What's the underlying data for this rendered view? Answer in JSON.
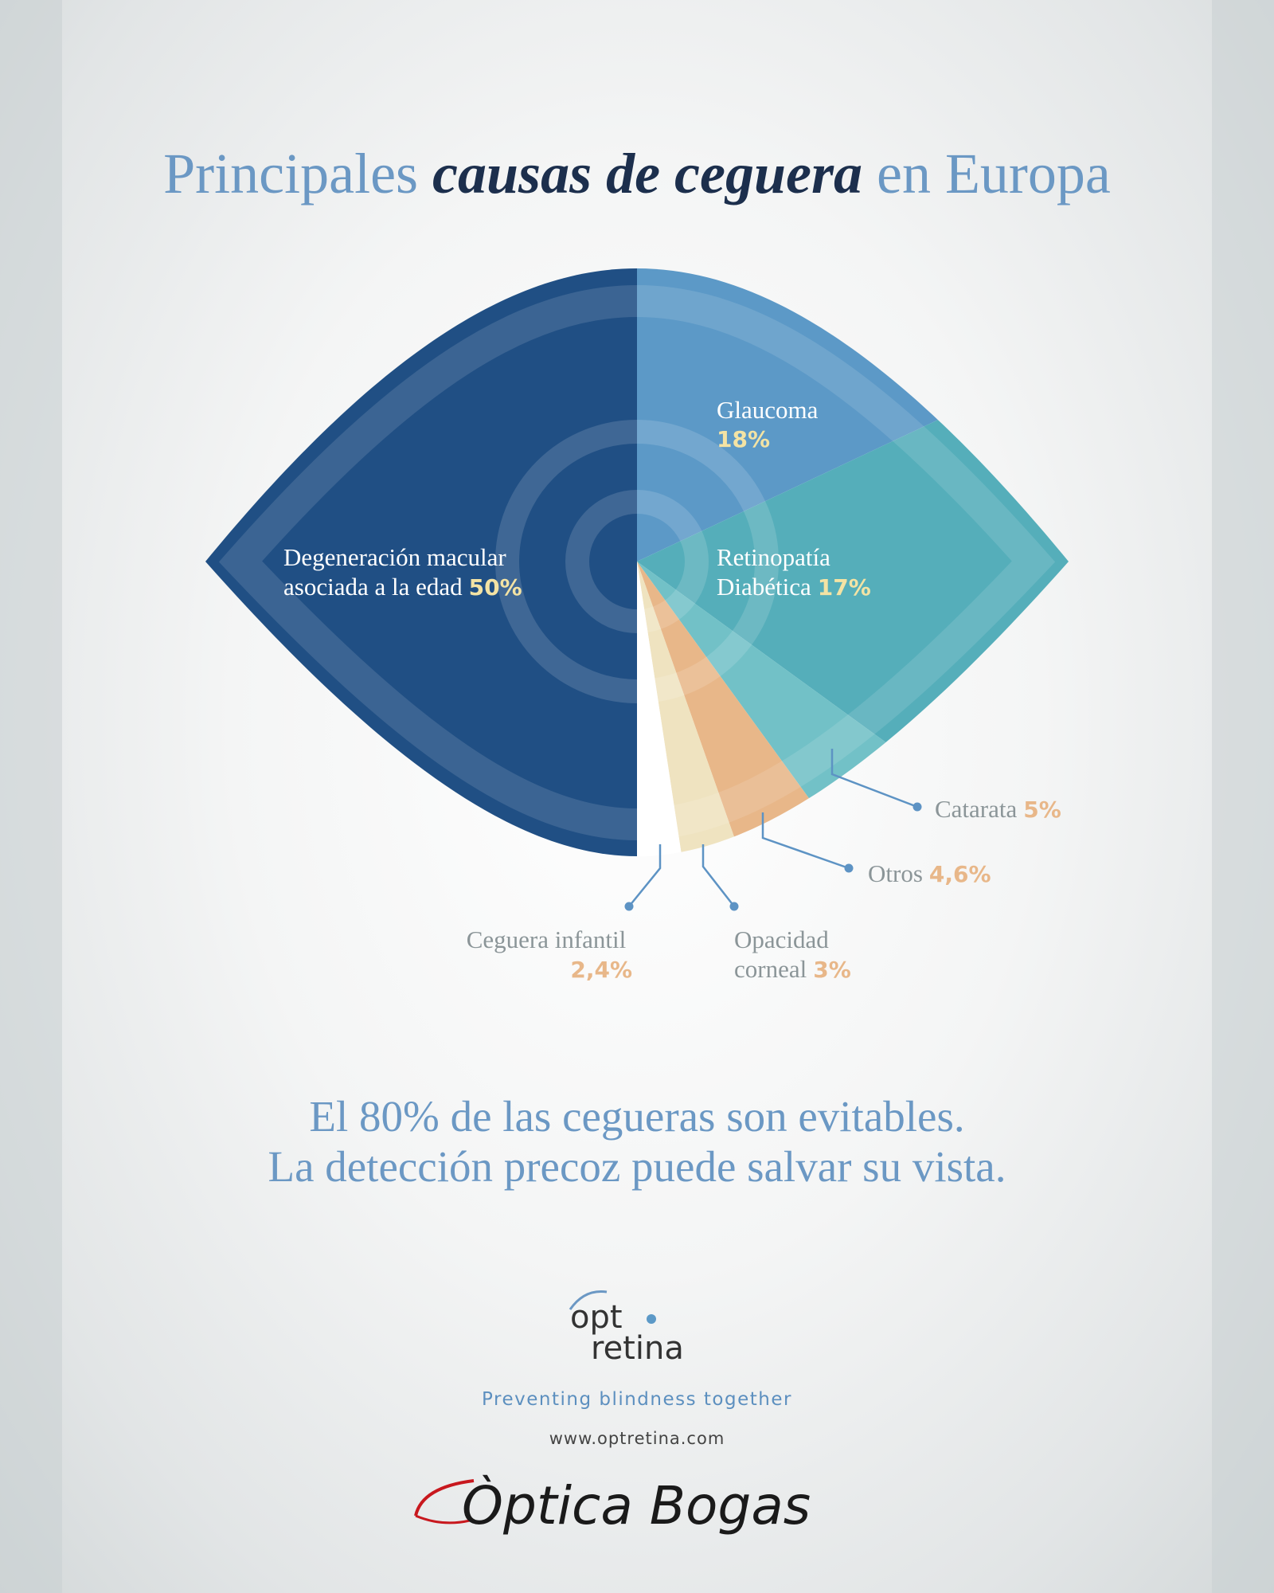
{
  "title": {
    "prefix": "Principales",
    "emphasis": "causas de ceguera",
    "suffix": "en Europa"
  },
  "chart_data": {
    "type": "pie",
    "title": "Principales causas de ceguera en Europa",
    "slices": [
      {
        "label_lines": [
          "Degeneración macular",
          "asociada a la edad"
        ],
        "value": 50,
        "value_text": "50%",
        "color": "#204f84"
      },
      {
        "label_lines": [
          "Glaucoma"
        ],
        "value": 18,
        "value_text": "18%",
        "color": "#5c99c7"
      },
      {
        "label_lines": [
          "Retinopatía",
          "Diabética"
        ],
        "value": 17,
        "value_text": "17%",
        "color": "#55aeba"
      },
      {
        "label_lines": [
          "Catarata"
        ],
        "value": 5,
        "value_text": "5%",
        "color": "#72c1c7"
      },
      {
        "label_lines": [
          "Otros"
        ],
        "value": 4.6,
        "value_text": "4,6%",
        "color": "#e8b789"
      },
      {
        "label_lines": [
          "Opacidad",
          "corneal"
        ],
        "value": 3,
        "value_text": "3%",
        "color": "#efe3c0"
      },
      {
        "label_lines": [
          "Ceguera infantil"
        ],
        "value": 2.4,
        "value_text": "2,4%",
        "color": "#ffffff"
      }
    ],
    "legend": "none",
    "grid": false
  },
  "message": {
    "line1": "El 80% de las cegueras son evitables.",
    "line2": "La detección precoz puede salvar su vista."
  },
  "optretina": {
    "word1": "opt",
    "word2": "retina",
    "tagline": "Preventing blindness together",
    "website": "www.optretina.com"
  },
  "bogas": {
    "name": "Òptica Bogas"
  },
  "colors": {
    "accent": "#6b98c4",
    "dark_blue": "#1c2f4d",
    "label_orange": "#e8b789",
    "label_yellow": "#f3e3a4",
    "connector": "#5d93c4"
  }
}
